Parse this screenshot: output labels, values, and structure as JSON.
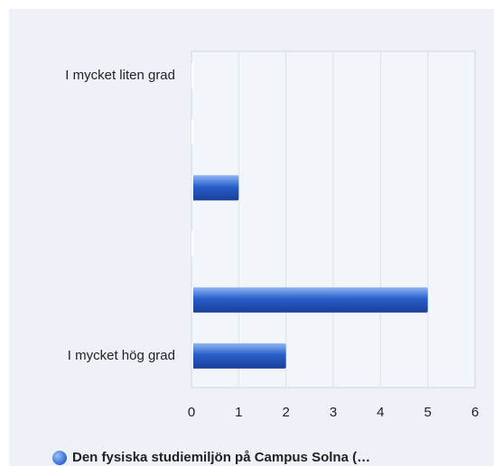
{
  "chart_data": {
    "type": "bar",
    "orientation": "horizontal",
    "categories": [
      "I mycket liten grad",
      null,
      null,
      null,
      null,
      "I mycket hög grad"
    ],
    "series": [
      {
        "name": "Den fysiska studiemiljön på Campus Solna (…",
        "color": "#2a5fc9",
        "values": [
          0,
          0,
          1,
          0,
          5,
          2
        ]
      }
    ],
    "xlim": [
      0,
      6
    ],
    "xticks": [
      0,
      1,
      2,
      3,
      4,
      5,
      6
    ],
    "grid": true,
    "legend": "bottom"
  }
}
